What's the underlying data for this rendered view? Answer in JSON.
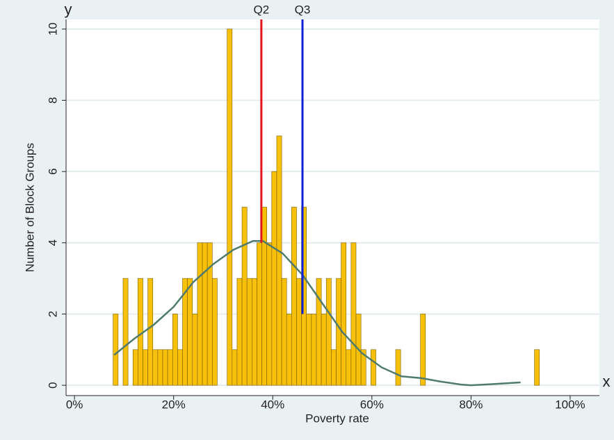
{
  "chart_data": {
    "type": "histogram",
    "x_label": "Poverty rate",
    "y_label": "Number of Block Groups",
    "x_axis_letter": "x",
    "y_axis_letter": "y",
    "color": "#f7c10a",
    "edge_color": "#7a5c00",
    "grid": true,
    "xlim": [
      -1.7,
      105.9
    ],
    "ylim": [
      -0.29,
      10.27
    ],
    "xticks": [
      {
        "value": 0,
        "label": "0%"
      },
      {
        "value": 20,
        "label": "20%"
      },
      {
        "value": 40,
        "label": "40%"
      },
      {
        "value": 60,
        "label": "60%"
      },
      {
        "value": 80,
        "label": "80%"
      },
      {
        "value": 100,
        "label": "100%"
      }
    ],
    "yticks": [
      0,
      2,
      4,
      6,
      8,
      10
    ],
    "bins": [
      7.8,
      8.8,
      9.8,
      10.8,
      11.8,
      12.8,
      13.8,
      14.8,
      15.8,
      16.8,
      17.8,
      18.8,
      19.8,
      20.8,
      21.8,
      22.8,
      23.8,
      24.8,
      25.8,
      26.8,
      27.8,
      28.8,
      29.8,
      30.8,
      31.8,
      32.8,
      33.8,
      34.8,
      35.8,
      36.8,
      37.8,
      38.8,
      39.8,
      40.8,
      41.8,
      42.8,
      43.8,
      44.8,
      45.8,
      46.8,
      47.8,
      48.8,
      49.8,
      50.8,
      51.8,
      52.8,
      53.8,
      54.8,
      55.8,
      56.8,
      57.8,
      58.8,
      59.8,
      60.8,
      61.8,
      62.8,
      63.8,
      64.8,
      65.8,
      66.8,
      67.8,
      68.8,
      69.8,
      70.8,
      71.8,
      72.8,
      73.8,
      74.8,
      75.8,
      76.8,
      77.8,
      78.8,
      79.8,
      80.8,
      81.8,
      82.8,
      83.8,
      84.8,
      85.8,
      86.8,
      87.8,
      88.8,
      89.8,
      90.8,
      91.8,
      92.8,
      93.8
    ],
    "counts": [
      2,
      0,
      3,
      0,
      1,
      3,
      1,
      3,
      1,
      1,
      1,
      1,
      2,
      1,
      3,
      3,
      2,
      4,
      4,
      4,
      3,
      0,
      0,
      10,
      1,
      3,
      5,
      3,
      3,
      4,
      5,
      4,
      6,
      7,
      3,
      2,
      5,
      3,
      5,
      2,
      2,
      3,
      2,
      3,
      1,
      3,
      4,
      1,
      4,
      2,
      1,
      0,
      1,
      0,
      0,
      0,
      0,
      1,
      0,
      0,
      0,
      0,
      2,
      0,
      0,
      0,
      0,
      0,
      0,
      0,
      0,
      0,
      0,
      0,
      0,
      0,
      0,
      0,
      0,
      0,
      0,
      0,
      0,
      0,
      0,
      1
    ],
    "density": {
      "color": "#4f7a6e",
      "x": [
        8,
        12,
        16,
        20,
        24,
        28,
        32,
        36,
        38,
        42,
        46,
        50,
        54,
        58,
        62,
        66,
        70,
        74,
        78,
        80,
        84,
        90
      ],
      "y": [
        0.85,
        1.3,
        1.7,
        2.2,
        2.9,
        3.4,
        3.8,
        4.05,
        4.05,
        3.7,
        3.1,
        2.3,
        1.5,
        0.9,
        0.5,
        0.25,
        0.2,
        0.1,
        0.02,
        0,
        0.03,
        0.08
      ]
    },
    "annotations": [
      {
        "label": "Q2",
        "x": 37.7,
        "y": 4,
        "color": "#e8141b"
      },
      {
        "label": "Q3",
        "x": 46,
        "y": 2,
        "color": "#1020d8"
      }
    ]
  }
}
